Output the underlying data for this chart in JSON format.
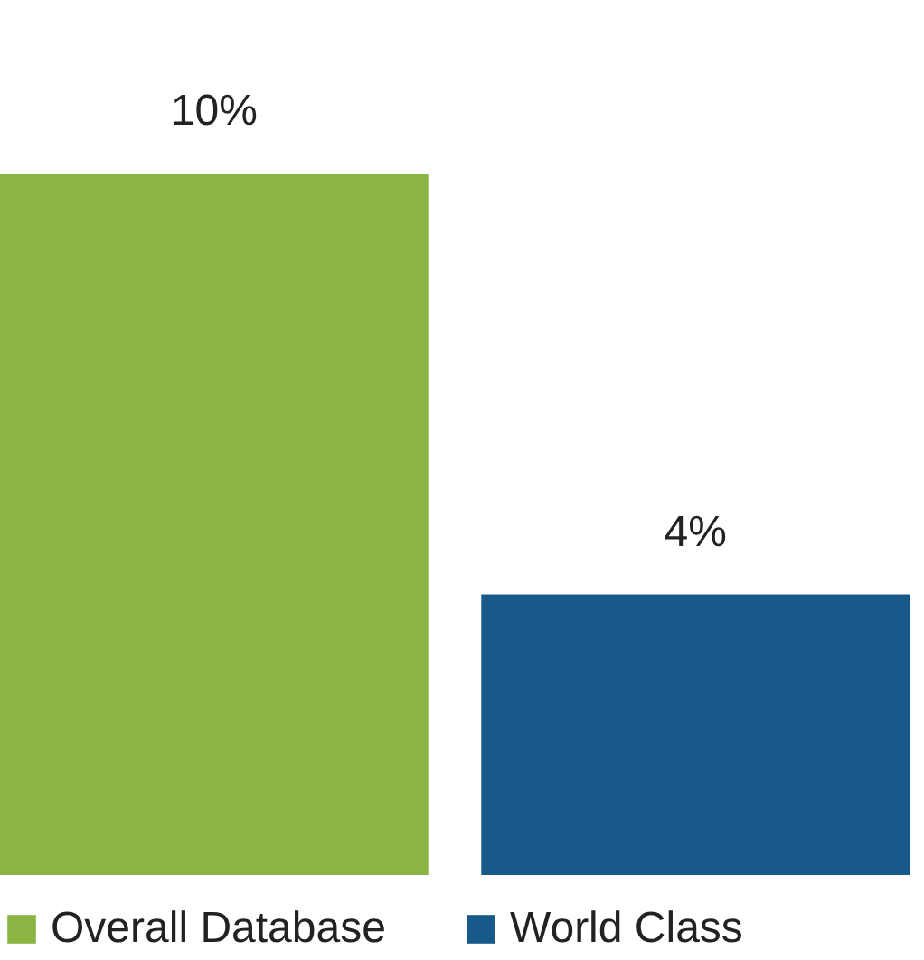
{
  "chart_data": {
    "type": "bar",
    "categories": [
      null
    ],
    "series": [
      {
        "name": "Overall Database",
        "color": "#8ab543",
        "values": [
          10
        ],
        "value_labels": [
          "10%"
        ]
      },
      {
        "name": "World Class",
        "color": "#175a8a",
        "values": [
          4
        ],
        "value_labels": [
          "4%"
        ]
      }
    ],
    "legend": "bottom",
    "tick_labels": false
  }
}
